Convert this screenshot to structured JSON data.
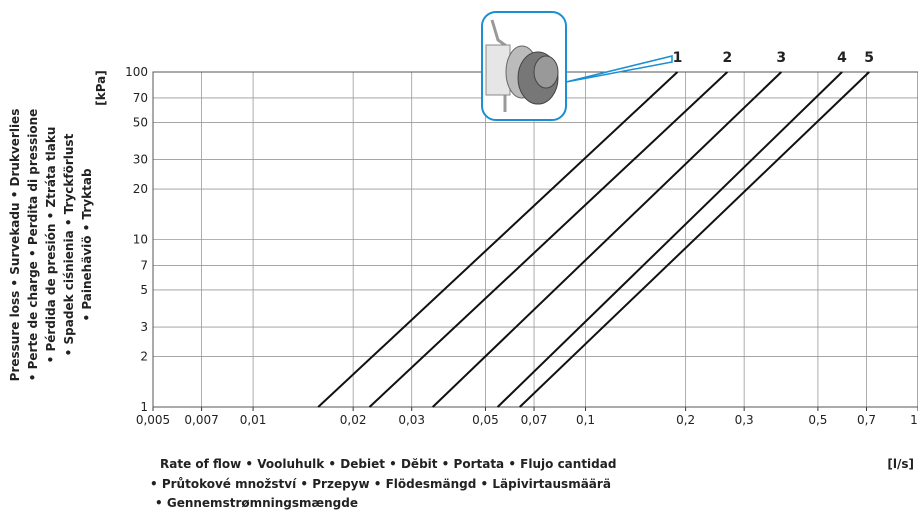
{
  "chart_data": {
    "type": "line",
    "y_label_lines": [
      "Pressure loss • Survekadu • Drukverlies",
      "• Perte de charge • Perdita di pressione",
      "• Pérdida de presión • Ztráta tlaku",
      "• Spadek ciśnienia • Tryckförlust",
      "• Painehäviö • Tryktab"
    ],
    "y_unit": "[kPa]",
    "x_label_lines": [
      "Rate of flow • Vooluhulk • Debiet • Dĕbit • Portata • Flujo cantidad",
      "• Průtokové množství • Przepyw • Flödesmängd • Läpivirtausmäärä",
      "• Gennemstrømningsmængde"
    ],
    "x_unit": "[l/s]",
    "log_x": true,
    "log_y": true,
    "grid": true,
    "xlim": [
      0.005,
      1
    ],
    "ylim": [
      1,
      100
    ],
    "xticks": [
      {
        "value": 0.005,
        "label": "0,005"
      },
      {
        "value": 0.007,
        "label": "0,007"
      },
      {
        "value": 0.01,
        "label": "0,01"
      },
      {
        "value": 0.02,
        "label": "0,02"
      },
      {
        "value": 0.03,
        "label": "0,03"
      },
      {
        "value": 0.05,
        "label": "0,05"
      },
      {
        "value": 0.07,
        "label": "0,07"
      },
      {
        "value": 0.1,
        "label": "0,1"
      },
      {
        "value": 0.2,
        "label": "0,2"
      },
      {
        "value": 0.3,
        "label": "0,3"
      },
      {
        "value": 0.5,
        "label": "0,5"
      },
      {
        "value": 0.7,
        "label": "0,7"
      },
      1
    ],
    "yticks": [
      1,
      2,
      3,
      5,
      7,
      10,
      20,
      30,
      50,
      70,
      100
    ],
    "series": [
      {
        "name": "1",
        "color": "#111111",
        "x": [
          0.0157,
          0.189
        ],
        "y": [
          1,
          100
        ]
      },
      {
        "name": "2",
        "color": "#111111",
        "x": [
          0.0224,
          0.267
        ],
        "y": [
          1,
          100
        ]
      },
      {
        "name": "3",
        "color": "#111111",
        "x": [
          0.0347,
          0.388
        ],
        "y": [
          1,
          100
        ]
      },
      {
        "name": "4",
        "color": "#111111",
        "x": [
          0.0544,
          0.591
        ],
        "y": [
          1,
          100
        ]
      },
      {
        "name": "5",
        "color": "#111111",
        "x": [
          0.0634,
          0.713
        ],
        "y": [
          1,
          100
        ]
      }
    ]
  }
}
